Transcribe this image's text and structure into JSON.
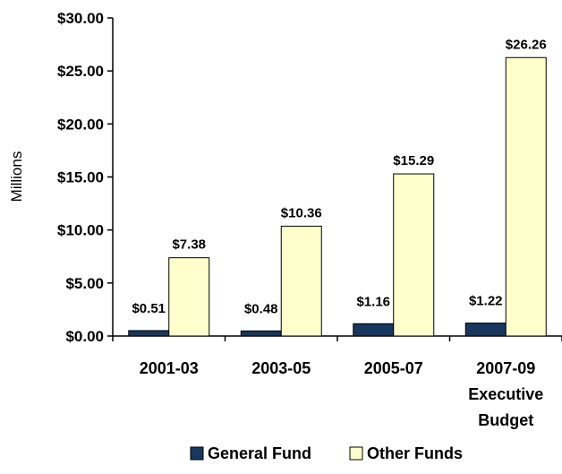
{
  "chart_data": {
    "type": "bar",
    "title": "",
    "xlabel": "",
    "ylabel": "Millions",
    "ylim": [
      0,
      30
    ],
    "y_ticks": [
      "$0.00",
      "$5.00",
      "$10.00",
      "$15.00",
      "$20.00",
      "$25.00",
      "$30.00"
    ],
    "y_tick_values": [
      0,
      5,
      10,
      15,
      20,
      25,
      30
    ],
    "categories": [
      [
        "2001-03"
      ],
      [
        "2003-05"
      ],
      [
        "2005-07"
      ],
      [
        "2007-09",
        "Executive",
        "Budget"
      ]
    ],
    "series": [
      {
        "name": "General Fund",
        "color": "#17375e",
        "values": [
          0.51,
          0.48,
          1.16,
          1.22
        ],
        "labels": [
          "$0.51",
          "$0.48",
          "$1.16",
          "$1.22"
        ]
      },
      {
        "name": "Other Funds",
        "color": "#ffffcc",
        "values": [
          7.38,
          10.36,
          15.29,
          26.26
        ],
        "labels": [
          "$7.38",
          "$10.36",
          "$15.29",
          "$26.26"
        ]
      }
    ],
    "grid": false,
    "legend": "bottom"
  }
}
